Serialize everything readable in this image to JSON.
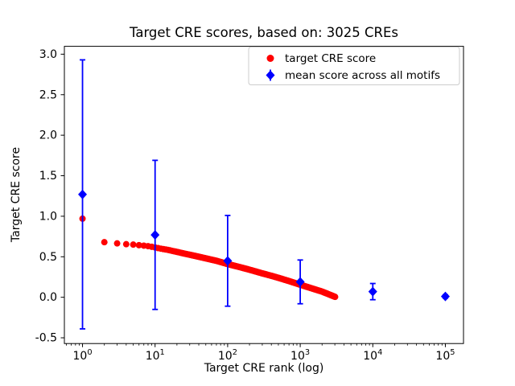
{
  "figure": {
    "background": "#ffffff"
  },
  "chart_data": {
    "type": "scatter",
    "title": "Target CRE scores, based on: 3025 CREs",
    "xlabel": "Target CRE rank (log)",
    "ylabel": "Target CRE score",
    "x_scale": "log",
    "xlim_log10": [
      -0.25,
      5.25
    ],
    "ylim": [
      -0.571,
      3.097
    ],
    "x_ticks": [
      {
        "value": 1,
        "base": "10",
        "exp": "0"
      },
      {
        "value": 10,
        "base": "10",
        "exp": "1"
      },
      {
        "value": 100,
        "base": "10",
        "exp": "2"
      },
      {
        "value": 1000,
        "base": "10",
        "exp": "3"
      },
      {
        "value": 10000,
        "base": "10",
        "exp": "4"
      },
      {
        "value": 100000,
        "base": "10",
        "exp": "5"
      }
    ],
    "y_ticks": [
      {
        "value": -0.5,
        "label": "-0.5"
      },
      {
        "value": 0.0,
        "label": "0.0"
      },
      {
        "value": 0.5,
        "label": "0.5"
      },
      {
        "value": 1.0,
        "label": "1.0"
      },
      {
        "value": 1.5,
        "label": "1.5"
      },
      {
        "value": 2.0,
        "label": "2.0"
      },
      {
        "value": 2.5,
        "label": "2.5"
      },
      {
        "value": 3.0,
        "label": "3.0"
      }
    ],
    "series": [
      {
        "name": "target CRE score",
        "type": "scatter",
        "marker": "circle",
        "color": "#ff0000",
        "n_points": 3025,
        "max_rank": 3025,
        "anchors": [
          [
            1,
            0.97
          ],
          [
            2,
            0.68
          ],
          [
            3,
            0.665
          ],
          [
            4,
            0.655
          ],
          [
            5,
            0.65
          ],
          [
            6,
            0.643
          ],
          [
            7,
            0.637
          ],
          [
            8,
            0.631
          ],
          [
            9,
            0.623
          ],
          [
            10,
            0.615
          ],
          [
            12,
            0.6
          ],
          [
            15,
            0.585
          ],
          [
            20,
            0.56
          ],
          [
            25,
            0.54
          ],
          [
            30,
            0.525
          ],
          [
            40,
            0.5
          ],
          [
            50,
            0.48
          ],
          [
            70,
            0.45
          ],
          [
            100,
            0.41
          ],
          [
            150,
            0.37
          ],
          [
            200,
            0.34
          ],
          [
            300,
            0.295
          ],
          [
            400,
            0.265
          ],
          [
            500,
            0.24
          ],
          [
            700,
            0.2
          ],
          [
            1000,
            0.155
          ],
          [
            1500,
            0.105
          ],
          [
            2000,
            0.07
          ],
          [
            2500,
            0.035
          ],
          [
            3025,
            0.005
          ]
        ]
      },
      {
        "name": "mean score across all motifs",
        "type": "errorbar",
        "marker": "diamond",
        "color": "#0000ff",
        "x": [
          1,
          10,
          100,
          1000,
          10000,
          100000
        ],
        "y": [
          1.27,
          0.77,
          0.45,
          0.19,
          0.07,
          0.01
        ],
        "yerr": [
          1.66,
          0.92,
          0.56,
          0.27,
          0.1,
          0.02
        ]
      }
    ],
    "legend": {
      "position": "upper center-right",
      "border_color": "#cccccc",
      "entries": [
        "target CRE score",
        "mean score across all motifs"
      ]
    },
    "grid": false
  }
}
